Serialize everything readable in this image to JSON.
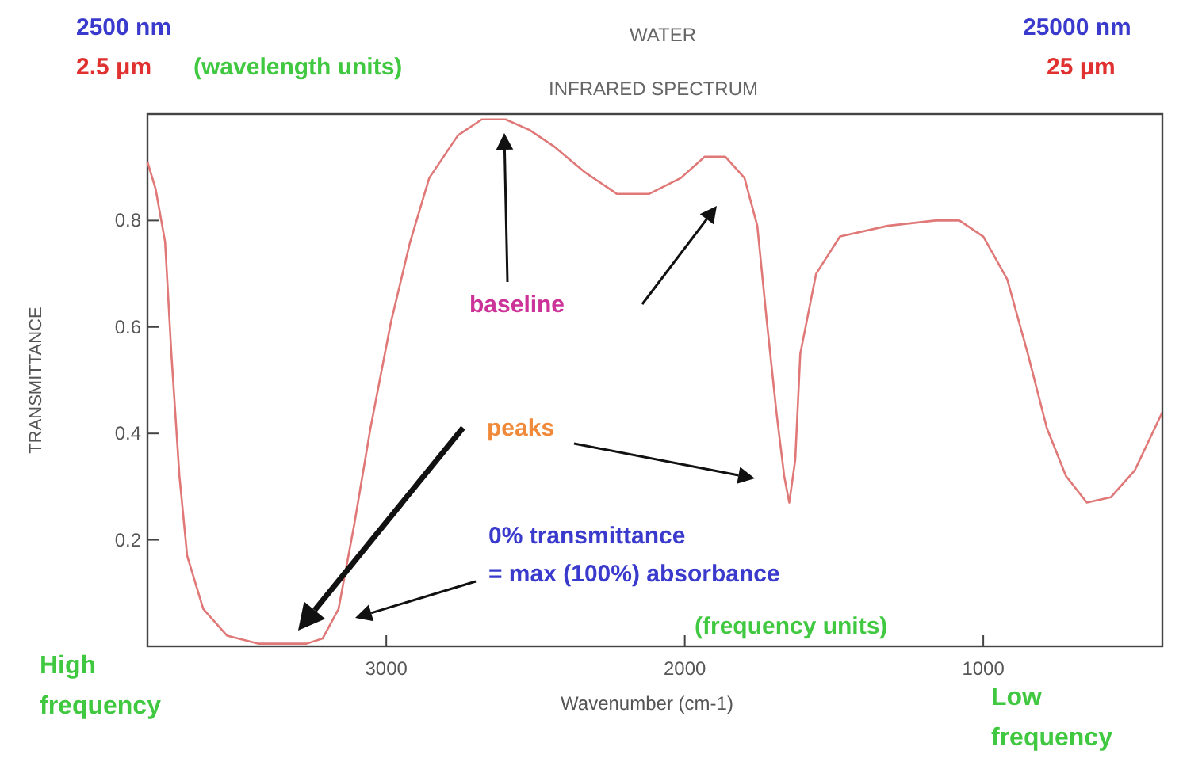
{
  "chart_data": {
    "type": "line",
    "title": "WATER",
    "subtitle": "INFRARED SPECTRUM",
    "xlabel": "Wavenumber (cm-1)",
    "ylabel": "TRANSMITTANCE",
    "x": [
      3800,
      3773,
      3741,
      3720,
      3693,
      3667,
      3613,
      3533,
      3427,
      3267,
      3213,
      3160,
      3107,
      3053,
      2984,
      2920,
      2856,
      2760,
      2680,
      2600,
      2520,
      2440,
      2333,
      2227,
      2120,
      2013,
      1933,
      1864,
      1800,
      1757,
      1725,
      1693,
      1667,
      1650,
      1630,
      1613,
      1560,
      1480,
      1320,
      1160,
      1080,
      1000,
      920,
      851,
      787,
      723,
      653,
      573,
      493,
      400
    ],
    "series": [
      {
        "color": "#e07878",
        "values": [
          0.91,
          0.86,
          0.76,
          0.55,
          0.32,
          0.17,
          0.07,
          0.02,
          0.005,
          0.005,
          0.015,
          0.07,
          0.23,
          0.41,
          0.61,
          0.76,
          0.88,
          0.96,
          0.99,
          0.99,
          0.97,
          0.94,
          0.89,
          0.85,
          0.85,
          0.88,
          0.92,
          0.92,
          0.88,
          0.79,
          0.61,
          0.44,
          0.32,
          0.27,
          0.35,
          0.55,
          0.7,
          0.77,
          0.79,
          0.8,
          0.8,
          0.77,
          0.69,
          0.55,
          0.41,
          0.32,
          0.27,
          0.28,
          0.33,
          0.44
        ]
      }
    ],
    "xlim": [
      3800,
      400
    ],
    "xticks": [
      3000,
      2000,
      1000
    ],
    "ylim": [
      0,
      1
    ],
    "yticks": [
      0.2,
      0.4,
      0.6,
      0.8
    ],
    "grid": false,
    "marker": "none",
    "line_style": "solid",
    "annotations": [
      "2500 nm",
      "2.5 μm",
      "(wavelength  units)",
      "25000 nm",
      "25 μm",
      "baseline",
      "peaks",
      "0% transmittance\n= max (100%) absorbance",
      "(frequency units)",
      "High\nfrequency",
      "Low\nfrequency"
    ]
  }
}
